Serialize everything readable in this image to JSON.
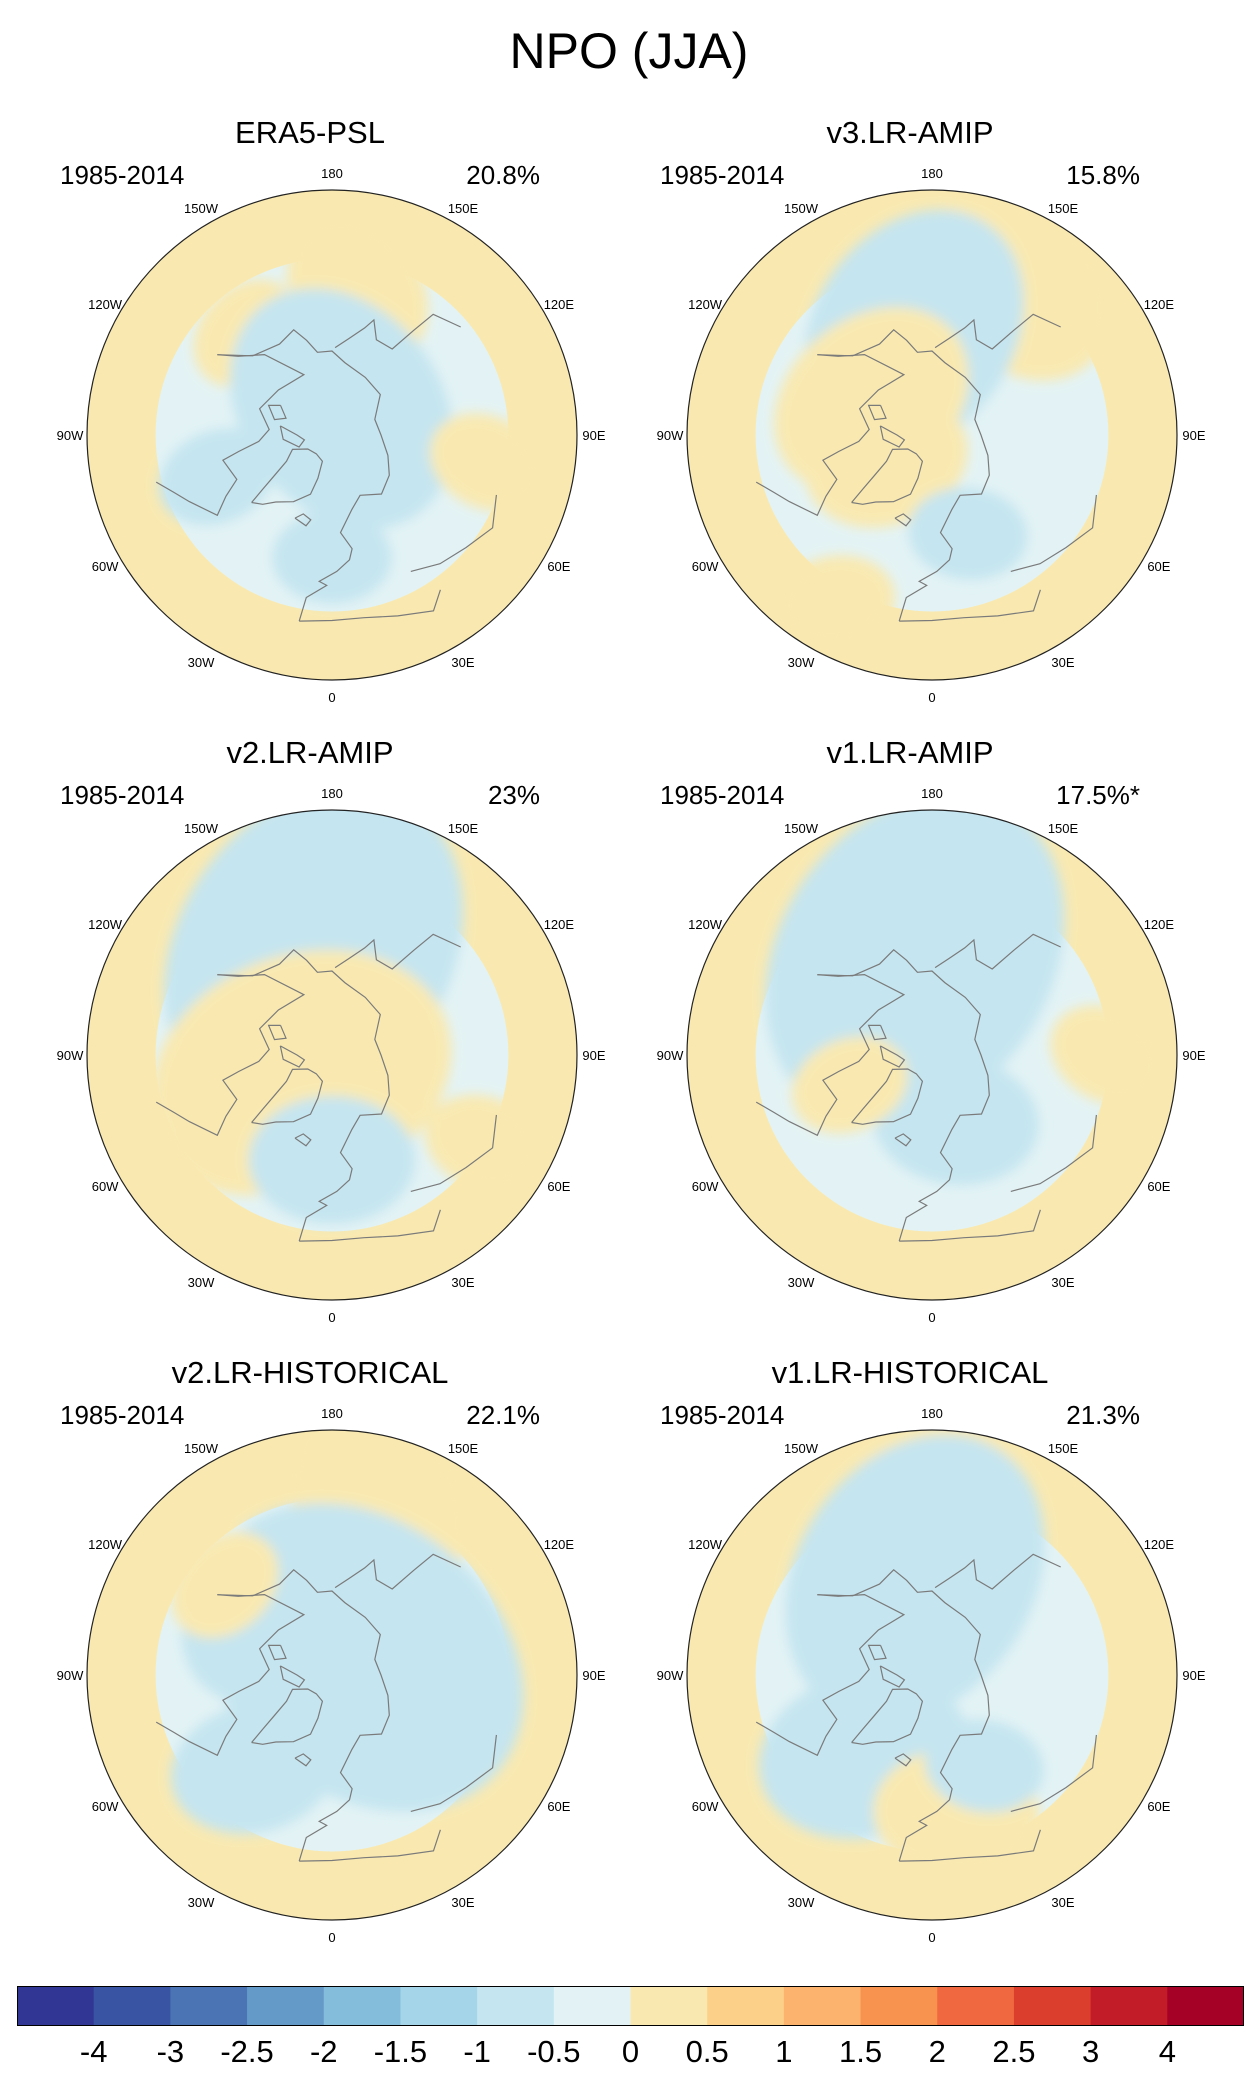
{
  "title": "NPO (JJA)",
  "colors": {
    "palette": [
      "#313695",
      "#3a54a4",
      "#4a74b4",
      "#649ac7",
      "#84bcdb",
      "#a5d5e8",
      "#c5e5f0",
      "#e3f3f5",
      "#f9e9b1",
      "#fdd089",
      "#fbb36e",
      "#f7924f",
      "#f06840",
      "#dc3e2e",
      "#c11c27",
      "#a50026"
    ],
    "coast": "#7a7a7a",
    "border": "#222222"
  },
  "lon_labels": [
    "180",
    "150E",
    "120E",
    "90E",
    "60E",
    "30E",
    "0",
    "30W",
    "60W",
    "90W",
    "120W",
    "150W"
  ],
  "panels": [
    {
      "title": "ERA5-PSL",
      "period": "1985-2014",
      "pct": "20.8%",
      "blobs": [
        {
          "type": "pos",
          "lon": 170,
          "lat": 48,
          "level": 2
        },
        {
          "type": "pos",
          "lon": -140,
          "lat": 52,
          "level": 1
        },
        {
          "type": "neg",
          "lon": 160,
          "lat": 82,
          "level": 4
        },
        {
          "type": "neg",
          "lon": -70,
          "lat": 55,
          "level": 1
        },
        {
          "type": "neg",
          "lon": 0,
          "lat": 55,
          "level": 1
        },
        {
          "type": "pos",
          "lon": 80,
          "lat": 45,
          "level": 1
        }
      ]
    },
    {
      "title": "v3.LR-AMIP",
      "period": "1985-2014",
      "pct": "15.8%",
      "blobs": [
        {
          "type": "pos",
          "lon": 150,
          "lat": 40,
          "level": 3
        },
        {
          "type": "neg",
          "lon": -170,
          "lat": 60,
          "level": 4
        },
        {
          "type": "pos",
          "lon": -120,
          "lat": 70,
          "level": 3
        },
        {
          "type": "pos",
          "lon": -60,
          "lat": 75,
          "level": 2
        },
        {
          "type": "neg",
          "lon": 20,
          "lat": 60,
          "level": 1
        },
        {
          "type": "pos",
          "lon": -30,
          "lat": 35,
          "level": 1
        }
      ]
    },
    {
      "title": "v2.LR-AMIP",
      "period": "1985-2014",
      "pct": "23%",
      "blobs": [
        {
          "type": "pos",
          "lon": 170,
          "lat": 40,
          "level": 3
        },
        {
          "type": "neg",
          "lon": -170,
          "lat": 60,
          "level": 6
        },
        {
          "type": "pos",
          "lon": -60,
          "lat": 80,
          "level": 5
        },
        {
          "type": "pos",
          "lon": -50,
          "lat": 65,
          "level": 3
        },
        {
          "type": "neg",
          "lon": 0,
          "lat": 60,
          "level": 2
        },
        {
          "type": "pos",
          "lon": 60,
          "lat": 40,
          "level": 1
        }
      ]
    },
    {
      "title": "v1.LR-AMIP",
      "period": "1985-2014",
      "pct": "17.5%*",
      "blobs": [
        {
          "type": "pos",
          "lon": 170,
          "lat": 40,
          "level": 2
        },
        {
          "type": "neg",
          "lon": -170,
          "lat": 62,
          "level": 6
        },
        {
          "type": "neg",
          "lon": 20,
          "lat": 70,
          "level": 2
        },
        {
          "type": "pos",
          "lon": -70,
          "lat": 65,
          "level": 1
        },
        {
          "type": "pos",
          "lon": 90,
          "lat": 40,
          "level": 1
        }
      ]
    },
    {
      "title": "v2.LR-HISTORICAL",
      "period": "1985-2014",
      "pct": "22.1%",
      "blobs": [
        {
          "type": "pos",
          "lon": 165,
          "lat": 38,
          "level": 3
        },
        {
          "type": "neg",
          "lon": 120,
          "lat": 80,
          "level": 6
        },
        {
          "type": "neg",
          "lon": -140,
          "lat": 65,
          "level": 3
        },
        {
          "type": "neg",
          "lon": -40,
          "lat": 55,
          "level": 2
        },
        {
          "type": "pos",
          "lon": -130,
          "lat": 50,
          "level": 1
        }
      ]
    },
    {
      "title": "v1.LR-HISTORICAL",
      "period": "1985-2014",
      "pct": "21.3%",
      "blobs": [
        {
          "type": "pos",
          "lon": 175,
          "lat": 40,
          "level": 3
        },
        {
          "type": "neg",
          "lon": -170,
          "lat": 62,
          "level": 5
        },
        {
          "type": "neg",
          "lon": -40,
          "lat": 60,
          "level": 3
        },
        {
          "type": "pos",
          "lon": 10,
          "lat": 50,
          "level": 2
        },
        {
          "type": "neg",
          "lon": 30,
          "lat": 60,
          "level": 1
        }
      ]
    }
  ],
  "colorbar": {
    "labels": [
      "-4",
      "-3",
      "-2.5",
      "-2",
      "-1.5",
      "-1",
      "-0.5",
      "0",
      "0.5",
      "1",
      "1.5",
      "2",
      "2.5",
      "3",
      "4"
    ]
  }
}
